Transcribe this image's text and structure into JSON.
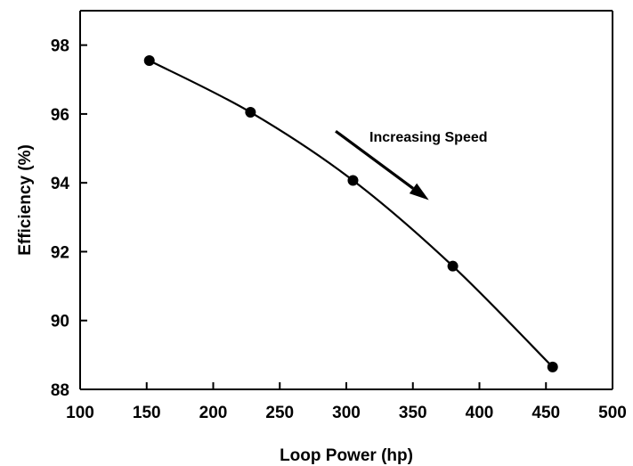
{
  "chart_data": {
    "type": "line",
    "xlabel": "Loop Power (hp)",
    "ylabel": "Efficiency (%)",
    "xlim": [
      100,
      500
    ],
    "ylim": [
      88,
      99
    ],
    "x_ticks": [
      100,
      150,
      200,
      250,
      300,
      350,
      400,
      450,
      500
    ],
    "y_ticks": [
      88,
      90,
      92,
      94,
      96,
      98
    ],
    "grid": false,
    "legend": "none",
    "series": [
      {
        "x": [
          152,
          228,
          305,
          380,
          455
        ],
        "y": [
          97.55,
          96.05,
          94.07,
          91.58,
          88.65
        ],
        "color": "#000000",
        "marker": "circle"
      }
    ],
    "annotations": [
      {
        "text": "Increasing Speed",
        "arrow_from": [
          292,
          95.5
        ],
        "arrow_to": [
          362,
          93.5
        ]
      }
    ]
  }
}
